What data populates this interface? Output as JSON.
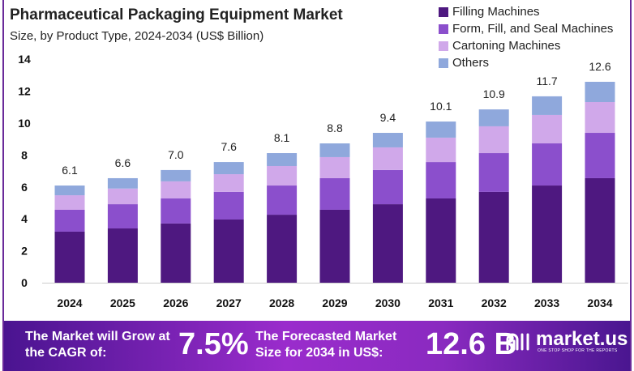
{
  "chart_data": {
    "type": "bar",
    "stacked": true,
    "title": "Pharmaceutical Packaging Equipment Market",
    "subtitle": "Size, by Product Type, 2024-2034 (US$ Billion)",
    "xlabel": "",
    "ylabel": "",
    "ylim": [
      0,
      14
    ],
    "yticks": [
      "0",
      "2",
      "4",
      "6",
      "8",
      "10",
      "12",
      "14"
    ],
    "grid": false,
    "legend_position": "top-right",
    "categories": [
      "2024",
      "2025",
      "2026",
      "2027",
      "2028",
      "2029",
      "2030",
      "2031",
      "2032",
      "2033",
      "2034"
    ],
    "totals": [
      "6.1",
      "6.6",
      "7.0",
      "7.6",
      "8.1",
      "8.8",
      "9.4",
      "10.1",
      "10.9",
      "11.7",
      "12.6"
    ],
    "series": [
      {
        "name": "Filling Machines",
        "color": "#4e1880",
        "values": [
          3.2,
          3.4,
          3.71,
          3.96,
          4.26,
          4.57,
          4.92,
          5.28,
          5.69,
          6.09,
          6.55
        ]
      },
      {
        "name": "Form, Fill, and Seal Machines",
        "color": "#8b4fcc",
        "values": [
          1.37,
          1.52,
          1.57,
          1.73,
          1.83,
          1.98,
          2.14,
          2.28,
          2.43,
          2.64,
          2.84
        ]
      },
      {
        "name": "Cartoning Machines",
        "color": "#d0a8ea",
        "values": [
          0.91,
          0.98,
          1.07,
          1.11,
          1.22,
          1.32,
          1.42,
          1.53,
          1.68,
          1.78,
          1.93
        ]
      },
      {
        "name": "Others",
        "color": "#8fa8dc",
        "values": [
          0.61,
          0.65,
          0.71,
          0.76,
          0.81,
          0.86,
          0.91,
          1.01,
          1.06,
          1.17,
          1.27
        ]
      }
    ]
  },
  "footer": {
    "cagr_text": "The Market will Grow at the CAGR of:",
    "cagr_value": "7.5%",
    "forecast_text": "The Forecasted Market Size for 2034 in US$:",
    "forecast_value": "12.6 B",
    "brand": "market.us",
    "tagline": "ONE STOP SHOP FOR THE REPORTS"
  }
}
